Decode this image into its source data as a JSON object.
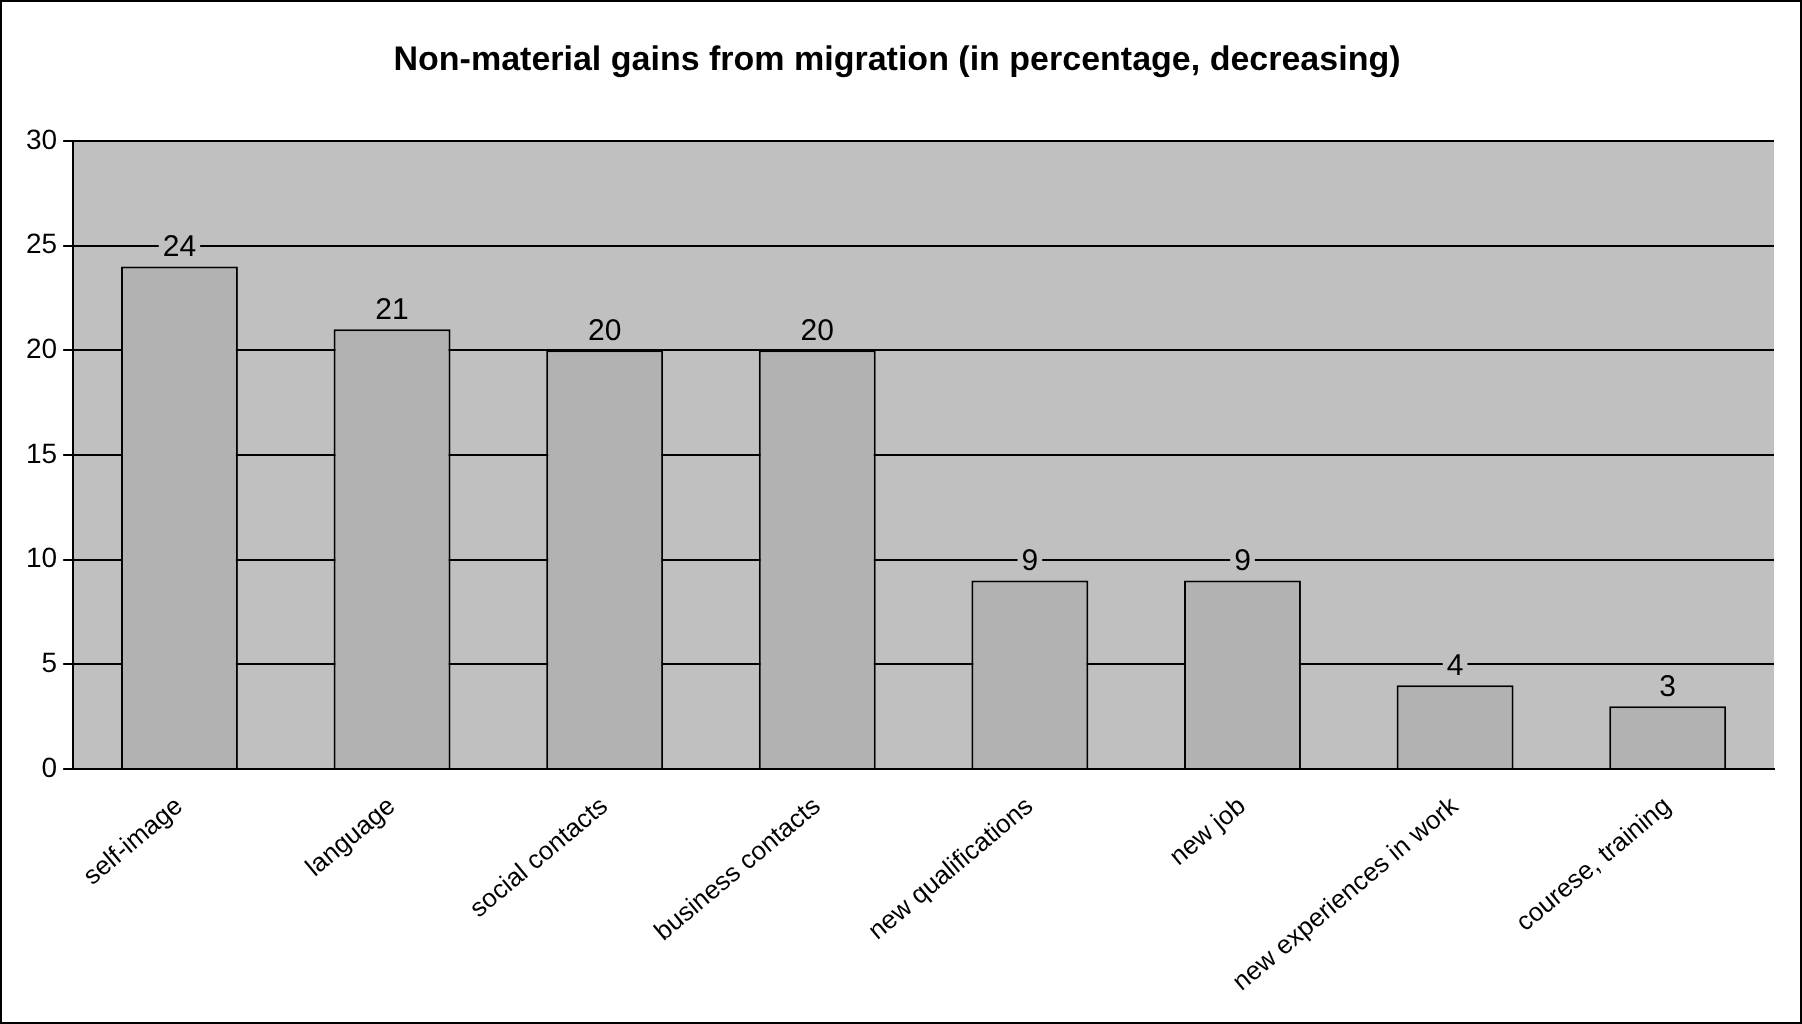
{
  "chart_data": {
    "type": "bar",
    "title": "Non-material gains from migration (in percentage, decreasing)",
    "categories": [
      "self-image",
      "language",
      "social contacts",
      "business contacts",
      "new qualifications",
      "new job",
      "new experiences in work",
      "courese, training"
    ],
    "values": [
      24,
      21,
      20,
      20,
      9,
      9,
      4,
      3
    ],
    "color": "#b2b2b2",
    "ylim": [
      0,
      30
    ],
    "yticks": [
      0,
      5,
      10,
      15,
      20,
      25,
      30
    ],
    "grid": "y",
    "data_labels": true,
    "legend": false
  }
}
